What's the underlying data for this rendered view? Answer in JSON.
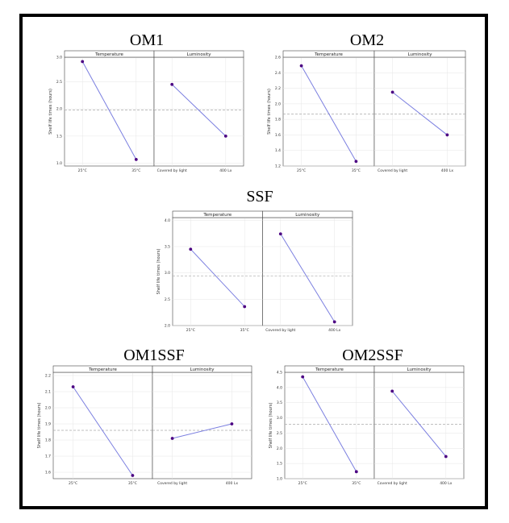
{
  "chart_data": [
    {
      "type": "line",
      "title": "OM1",
      "ylabel": "Shelf life times (hours)",
      "ylim": [
        0.95,
        2.95
      ],
      "yticks": [
        1.0,
        1.5,
        2.0,
        2.5
      ],
      "ytick_labels": [
        "1.0",
        "1.5",
        "2.0",
        "2.5"
      ],
      "top_tick_label": "3.0",
      "reference_line": 1.98,
      "facets": [
        {
          "label": "Temperature",
          "categories": [
            "25°C",
            "35°C"
          ],
          "values": [
            2.87,
            1.07
          ]
        },
        {
          "label": "Luminosity",
          "categories": [
            "Covered by light",
            "400 Lx"
          ],
          "values": [
            2.45,
            1.5
          ]
        }
      ]
    },
    {
      "type": "line",
      "title": "OM2",
      "ylabel": "Shelf life times (hours)",
      "ylim": [
        1.2,
        2.6
      ],
      "yticks": [
        1.2,
        1.4,
        1.6,
        1.8,
        2.0,
        2.2,
        2.4,
        2.6
      ],
      "ytick_labels": [
        "1.2",
        "1.4",
        "1.6",
        "1.8",
        "2.0",
        "2.2",
        "2.4",
        "2.6"
      ],
      "reference_line": 1.87,
      "facets": [
        {
          "label": "Temperature",
          "categories": [
            "25°C",
            "35°C"
          ],
          "values": [
            2.49,
            1.26
          ]
        },
        {
          "label": "Luminosity",
          "categories": [
            "Covered by light",
            "400 Lx"
          ],
          "values": [
            2.15,
            1.6
          ]
        }
      ]
    },
    {
      "type": "line",
      "title": "SSF",
      "ylabel": "Shelf life times (hours)",
      "ylim": [
        2.0,
        4.05
      ],
      "yticks": [
        2.0,
        2.5,
        3.0,
        3.5,
        4.0
      ],
      "ytick_labels": [
        "2.0",
        "2.5",
        "3.0",
        "3.5",
        "4.0"
      ],
      "reference_line": 2.94,
      "facets": [
        {
          "label": "Temperature",
          "categories": [
            "25°C",
            "35°C"
          ],
          "values": [
            3.45,
            2.36
          ]
        },
        {
          "label": "Luminosity",
          "categories": [
            "Covered by light",
            "400 Lx"
          ],
          "values": [
            3.74,
            2.07
          ]
        }
      ]
    },
    {
      "type": "line",
      "title": "OM1SSF",
      "ylabel": "Shelf life times (hours)",
      "ylim": [
        1.56,
        2.22
      ],
      "yticks": [
        1.6,
        1.7,
        1.8,
        1.9,
        2.0,
        2.1,
        2.2
      ],
      "ytick_labels": [
        "1.6",
        "1.7",
        "1.8",
        "1.9",
        "2.0",
        "2.1",
        "2.2"
      ],
      "reference_line": 1.86,
      "facets": [
        {
          "label": "Temperature",
          "categories": [
            "25°C",
            "35°C"
          ],
          "values": [
            2.13,
            1.58
          ]
        },
        {
          "label": "Luminosity",
          "categories": [
            "Covered by light",
            "400 Lx"
          ],
          "values": [
            1.81,
            1.9
          ]
        }
      ]
    },
    {
      "type": "line",
      "title": "OM2SSF",
      "ylabel": "Shelf life times (hours)",
      "ylim": [
        1.0,
        4.5
      ],
      "yticks": [
        1.0,
        1.5,
        2.0,
        2.5,
        3.0,
        3.5,
        4.0,
        4.5
      ],
      "ytick_labels": [
        "1.0",
        "1.5",
        "2.0",
        "2.5",
        "3.0",
        "3.5",
        "4.0",
        "4.5"
      ],
      "reference_line": 2.79,
      "facets": [
        {
          "label": "Temperature",
          "categories": [
            "25°C",
            "35°C"
          ],
          "values": [
            4.35,
            1.23
          ]
        },
        {
          "label": "Luminosity",
          "categories": [
            "Covered by light",
            "400 Lx"
          ],
          "values": [
            3.88,
            1.73
          ]
        }
      ]
    }
  ],
  "style": {
    "line_color": "#7b7fe0",
    "point_color": "#4b0082",
    "reference_line_color": "#aaaaaa",
    "grid_color": "#e6e6e6",
    "strip_fill": "#ffffff",
    "border_color": "#444444"
  }
}
